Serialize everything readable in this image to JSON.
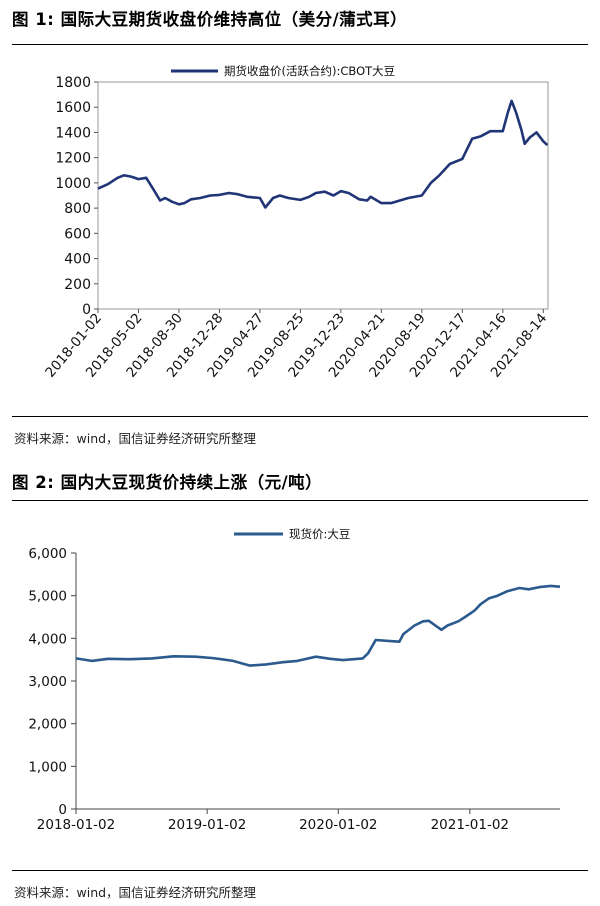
{
  "figures": [
    {
      "title": "图 1:  国际大豆期货收盘价维持高位（美分/蒲式耳）",
      "source": "资料来源：wind，国信证券经济研究所整理"
    },
    {
      "title": "图 2:  国内大豆现货价持续上涨（元/吨）",
      "source": "资料来源：wind，国信证券经济研究所整理"
    }
  ],
  "chart_data": [
    {
      "type": "line",
      "title": "",
      "xlabel": "",
      "ylabel": "",
      "ylim": [
        0,
        1800
      ],
      "y_ticks": [
        0,
        200,
        400,
        600,
        800,
        1000,
        1200,
        1400,
        1600,
        1800
      ],
      "y_tick_labels": [
        "0",
        "200",
        "400",
        "600",
        "800",
        "1000",
        "1200",
        "1400",
        "1600",
        "1800"
      ],
      "x_ticks": [
        "2018-01-02",
        "2018-05-02",
        "2018-08-30",
        "2018-12-28",
        "2019-04-27",
        "2019-08-25",
        "2019-12-23",
        "2020-04-21",
        "2020-08-19",
        "2020-12-17",
        "2021-04-16",
        "2021-08-14"
      ],
      "grid": false,
      "legend_position": "top-center",
      "color": "#1f3576",
      "series": [
        {
          "name": "期货收盘价(活跃合约):CBOT大豆",
          "x": [
            "2018-01-02",
            "2018-02-01",
            "2018-03-01",
            "2018-03-20",
            "2018-04-10",
            "2018-05-02",
            "2018-05-25",
            "2018-06-15",
            "2018-07-05",
            "2018-07-20",
            "2018-08-10",
            "2018-08-30",
            "2018-09-15",
            "2018-10-05",
            "2018-11-01",
            "2018-12-01",
            "2018-12-28",
            "2019-01-25",
            "2019-02-20",
            "2019-03-20",
            "2019-04-27",
            "2019-05-13",
            "2019-06-05",
            "2019-06-25",
            "2019-07-20",
            "2019-08-25",
            "2019-09-20",
            "2019-10-10",
            "2019-11-05",
            "2019-12-01",
            "2019-12-23",
            "2020-01-15",
            "2020-02-15",
            "2020-03-10",
            "2020-03-20",
            "2020-04-21",
            "2020-05-20",
            "2020-06-15",
            "2020-07-10",
            "2020-08-19",
            "2020-09-15",
            "2020-10-10",
            "2020-11-10",
            "2020-12-17",
            "2021-01-15",
            "2021-02-10",
            "2021-03-10",
            "2021-04-16",
            "2021-05-01",
            "2021-05-12",
            "2021-05-25",
            "2021-06-10",
            "2021-06-20",
            "2021-07-05",
            "2021-07-25",
            "2021-08-14",
            "2021-08-26"
          ],
          "values": [
            955,
            990,
            1040,
            1060,
            1050,
            1030,
            1040,
            950,
            860,
            880,
            850,
            830,
            840,
            870,
            880,
            900,
            905,
            920,
            910,
            890,
            880,
            805,
            880,
            900,
            880,
            865,
            890,
            920,
            930,
            900,
            935,
            920,
            870,
            860,
            890,
            840,
            840,
            860,
            880,
            900,
            1000,
            1060,
            1150,
            1190,
            1350,
            1370,
            1410,
            1410,
            1560,
            1650,
            1560,
            1420,
            1310,
            1360,
            1400,
            1330,
            1300
          ]
        }
      ]
    },
    {
      "type": "line",
      "title": "",
      "xlabel": "",
      "ylabel": "",
      "ylim": [
        0,
        6000
      ],
      "y_ticks": [
        0,
        1000,
        2000,
        3000,
        4000,
        5000,
        6000
      ],
      "y_tick_labels": [
        "0",
        "1,000",
        "2,000",
        "3,000",
        "4,000",
        "5,000",
        "6,000"
      ],
      "x_ticks": [
        "2018-01-02",
        "2019-01-02",
        "2020-01-02",
        "2021-01-02"
      ],
      "grid": false,
      "legend_position": "top-center",
      "color": "#2a5a8e",
      "series": [
        {
          "name": "现货价:大豆",
          "x": [
            "2018-01-02",
            "2018-02-15",
            "2018-04-01",
            "2018-06-01",
            "2018-08-01",
            "2018-10-01",
            "2018-12-01",
            "2019-01-15",
            "2019-02-10",
            "2019-03-15",
            "2019-05-01",
            "2019-06-15",
            "2019-08-01",
            "2019-09-10",
            "2019-11-01",
            "2019-12-10",
            "2020-01-15",
            "2020-03-10",
            "2020-03-25",
            "2020-04-15",
            "2020-05-20",
            "2020-06-20",
            "2020-07-01",
            "2020-08-01",
            "2020-08-25",
            "2020-09-10",
            "2020-10-15",
            "2020-11-01",
            "2020-12-01",
            "2020-12-20",
            "2021-01-15",
            "2021-02-01",
            "2021-02-25",
            "2021-03-20",
            "2021-04-15",
            "2021-05-20",
            "2021-06-15",
            "2021-07-15",
            "2021-08-15",
            "2021-09-10"
          ],
          "values": [
            3530,
            3470,
            3520,
            3510,
            3530,
            3580,
            3570,
            3540,
            3510,
            3470,
            3360,
            3390,
            3440,
            3470,
            3570,
            3520,
            3490,
            3530,
            3650,
            3960,
            3940,
            3920,
            4100,
            4300,
            4400,
            4410,
            4200,
            4300,
            4400,
            4500,
            4650,
            4800,
            4940,
            5000,
            5100,
            5180,
            5150,
            5200,
            5230,
            5210
          ]
        }
      ]
    }
  ]
}
